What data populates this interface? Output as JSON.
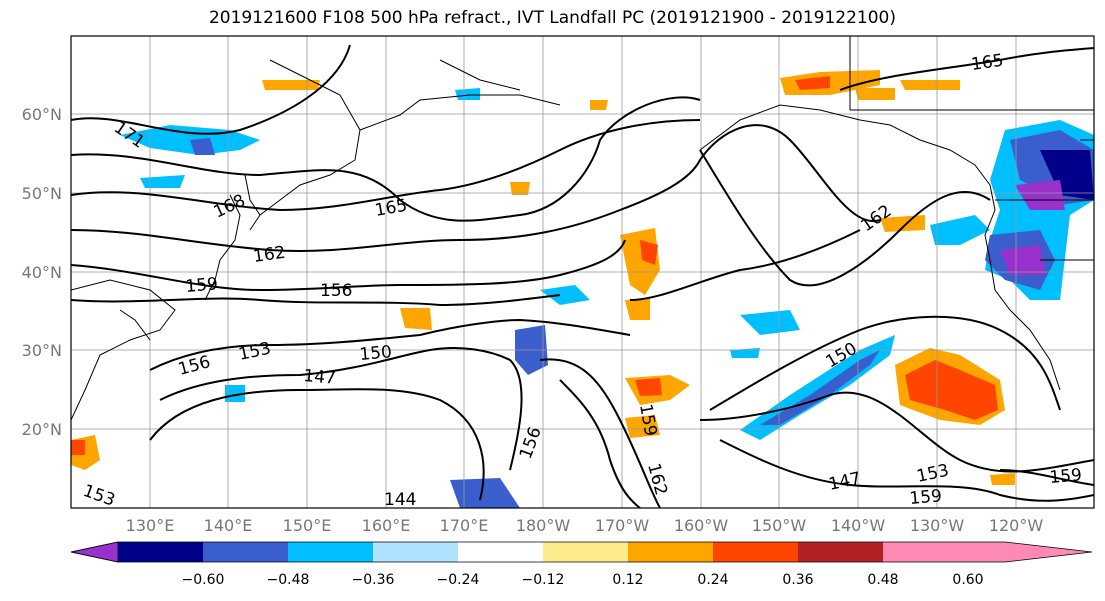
{
  "title": "2019121600 F108 500 hPa refract., IVT Landfall PC (2019121900 - 2019122100)",
  "lat_labels": [
    "60°N",
    "50°N",
    "40°N",
    "30°N",
    "20°N"
  ],
  "lon_labels": [
    "130°E",
    "140°E",
    "150°E",
    "160°E",
    "170°E",
    "180°W",
    "170°W",
    "160°W",
    "150°W",
    "140°W",
    "130°W",
    "120°W"
  ],
  "contour_labels": [
    "171",
    "168",
    "165",
    "165",
    "162",
    "162",
    "159",
    "156",
    "156",
    "153",
    "150",
    "150",
    "147",
    "147",
    "144",
    "153",
    "153",
    "156",
    "159",
    "159",
    "159",
    "162"
  ],
  "colorbar": {
    "colors": [
      "#9932cc",
      "#00008b",
      "#3a5fcd",
      "#00bfff",
      "#b0e2ff",
      "#ffffff",
      "#fdec8c",
      "#ffa500",
      "#ff4500",
      "#b22222",
      "#ff89b5"
    ],
    "tick_labels": [
      "−0.60",
      "−0.48",
      "−0.36",
      "−0.24",
      "−0.12",
      "0.12",
      "0.24",
      "0.36",
      "0.48",
      "0.60"
    ]
  },
  "map_extent": {
    "lon_min": 120,
    "lon_max": 250,
    "lat_min": 10,
    "lat_max": 70
  }
}
